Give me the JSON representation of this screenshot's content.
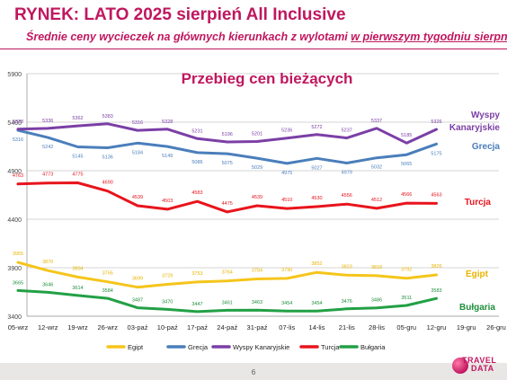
{
  "slide": {
    "title": "RYNEK: LATO 2025 sierpień All Inclusive",
    "subtitle_pre": "Średnie ceny wycieczek na głównych kierunkach z wylotami ",
    "subtitle_ul": "w pierwszym tygodniu sierpnia",
    "page_number": "6",
    "logo_line1": "TRAVEL",
    "logo_line2": "DATA"
  },
  "chart_data": {
    "type": "line",
    "title": "Przebieg cen bieżących",
    "categories": [
      "05-wrz",
      "12-wrz",
      "19-wrz",
      "26-wrz",
      "03-paź",
      "10-paź",
      "17-paź",
      "24-paź",
      "31-paź",
      "07-lis",
      "14-lis",
      "21-lis",
      "28-lis",
      "05-gru",
      "12-gru",
      "19-gru",
      "26-gru"
    ],
    "yticks": [
      3400,
      3900,
      4400,
      4900,
      5400,
      5900
    ],
    "ylim": [
      3400,
      5900
    ],
    "grid": true,
    "legend_position": "bottom",
    "series": [
      {
        "name": "Egipt",
        "color": "#f5c51b",
        "label_color": "#e8b400",
        "end_label": "Egipt",
        "values": [
          3955,
          3870,
          3804,
          3755,
          3699,
          3729,
          3753,
          3764,
          3784,
          3790,
          3852,
          3823,
          3818,
          3792,
          3826,
          null,
          null
        ]
      },
      {
        "name": "Grecja",
        "color": "#4a7ebb",
        "label_color": "#4a7ebb",
        "end_label": "Grecja",
        "values": [
          5316,
          5242,
          5145,
          5136,
          5184,
          5149,
          5086,
          5075,
          5029,
          4975,
          5027,
          4979,
          5032,
          5065,
          5175,
          null,
          null
        ]
      },
      {
        "name": "Wyspy Kanaryjskie",
        "color": "#7b3fa6",
        "label_color": "#7b3fa6",
        "end_label": "Wyspy Kanaryjskie",
        "values": [
          5328,
          5336,
          5362,
          5383,
          5316,
          5328,
          5231,
          5196,
          5201,
          5236,
          5272,
          5237,
          5337,
          5185,
          5326,
          null,
          null
        ]
      },
      {
        "name": "Turcja",
        "color": "#e8141c",
        "label_color": "#e8141c",
        "end_label": "Turcja",
        "values": [
          4763,
          4773,
          4775,
          4690,
          4539,
          4503,
          4583,
          4475,
          4539,
          4510,
          4530,
          4556,
          4512,
          4566,
          4563,
          null,
          null
        ]
      },
      {
        "name": "Bułgaria",
        "color": "#22a045",
        "label_color": "#1e8f3c",
        "end_label": "Bułgaria",
        "values": [
          3665,
          3646,
          3614,
          3584,
          3487,
          3470,
          3447,
          3461,
          3463,
          3454,
          3454,
          3476,
          3486,
          3511,
          3583,
          null,
          null
        ]
      }
    ]
  }
}
